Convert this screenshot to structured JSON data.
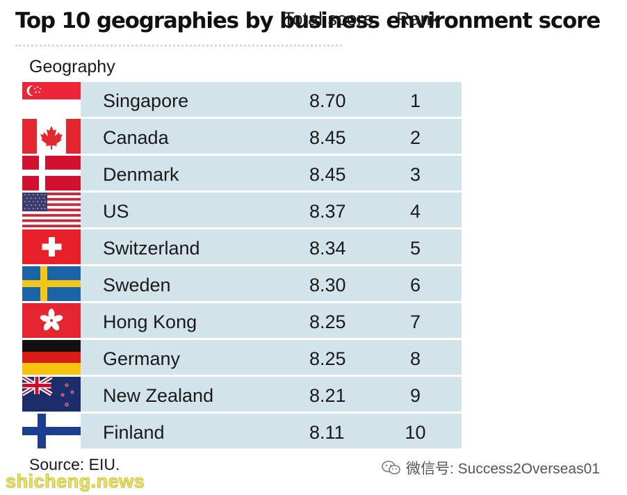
{
  "title": "Top 10 geographies by business environment score",
  "headers": {
    "geography": "Geography",
    "score": "Total score",
    "rank": "Rank"
  },
  "rows": [
    {
      "geography": "Singapore",
      "score": "8.70",
      "rank": "1",
      "flag": "singapore-flag-icon"
    },
    {
      "geography": "Canada",
      "score": "8.45",
      "rank": "2",
      "flag": "canada-flag-icon"
    },
    {
      "geography": "Denmark",
      "score": "8.45",
      "rank": "3",
      "flag": "denmark-flag-icon"
    },
    {
      "geography": "US",
      "score": "8.37",
      "rank": "4",
      "flag": "us-flag-icon"
    },
    {
      "geography": "Switzerland",
      "score": "8.34",
      "rank": "5",
      "flag": "switzerland-flag-icon"
    },
    {
      "geography": "Sweden",
      "score": "8.30",
      "rank": "6",
      "flag": "sweden-flag-icon"
    },
    {
      "geography": "Hong Kong",
      "score": "8.25",
      "rank": "7",
      "flag": "hong-kong-flag-icon"
    },
    {
      "geography": "Germany",
      "score": "8.25",
      "rank": "8",
      "flag": "germany-flag-icon"
    },
    {
      "geography": "New Zealand",
      "score": "8.21",
      "rank": "9",
      "flag": "new-zealand-flag-icon"
    },
    {
      "geography": "Finland",
      "score": "8.11",
      "rank": "10",
      "flag": "finland-flag-icon"
    }
  ],
  "source": "Source: EIU.",
  "watermark": {
    "wechat": "微信号: Success2Overseas01",
    "site": "shicheng.news"
  },
  "colors": {
    "row_bg": "#d3e3ea",
    "site_watermark": "#e8e26a"
  }
}
